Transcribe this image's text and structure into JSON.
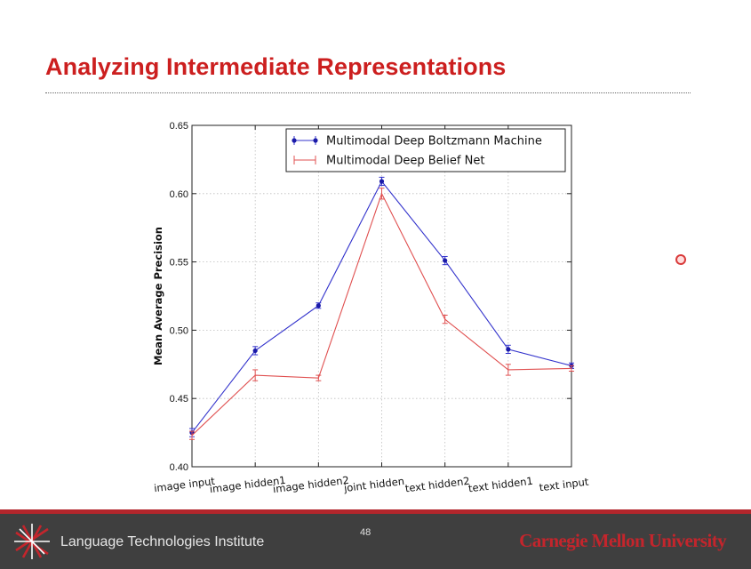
{
  "slide": {
    "title": "Analyzing Intermediate Representations",
    "page_number": "48"
  },
  "footer": {
    "institute": "Language Technologies Institute",
    "university": "Carnegie Mellon University",
    "bg_color": "#3f3f3f",
    "accent_color": "#b3262c"
  },
  "chart_data": {
    "type": "line",
    "title": "",
    "xlabel": "",
    "ylabel": "Mean Average Precision",
    "categories": [
      "image input",
      "image hidden1",
      "image hidden2",
      "joint hidden",
      "text hidden2",
      "text hidden1",
      "text input"
    ],
    "ylim": [
      0.4,
      0.65
    ],
    "yticks": [
      "0.40",
      "0.45",
      "0.50",
      "0.55",
      "0.60",
      "0.65"
    ],
    "ytick_values": [
      0.4,
      0.45,
      0.5,
      0.55,
      0.6,
      0.65
    ],
    "grid": true,
    "legend_position": "top-right",
    "series": [
      {
        "name": "Multimodal Deep Boltzmann Machine",
        "color": "#3333cc",
        "values": [
          0.425,
          0.485,
          0.518,
          0.609,
          0.551,
          0.486,
          0.474
        ],
        "errors": [
          0.003,
          0.003,
          0.002,
          0.003,
          0.003,
          0.003,
          0.002
        ]
      },
      {
        "name": "Multimodal Deep Belief Net",
        "color": "#e05050",
        "values": [
          0.423,
          0.467,
          0.465,
          0.6,
          0.508,
          0.471,
          0.472
        ],
        "errors": [
          0.003,
          0.004,
          0.002,
          0.004,
          0.003,
          0.004,
          0.002
        ]
      }
    ]
  }
}
